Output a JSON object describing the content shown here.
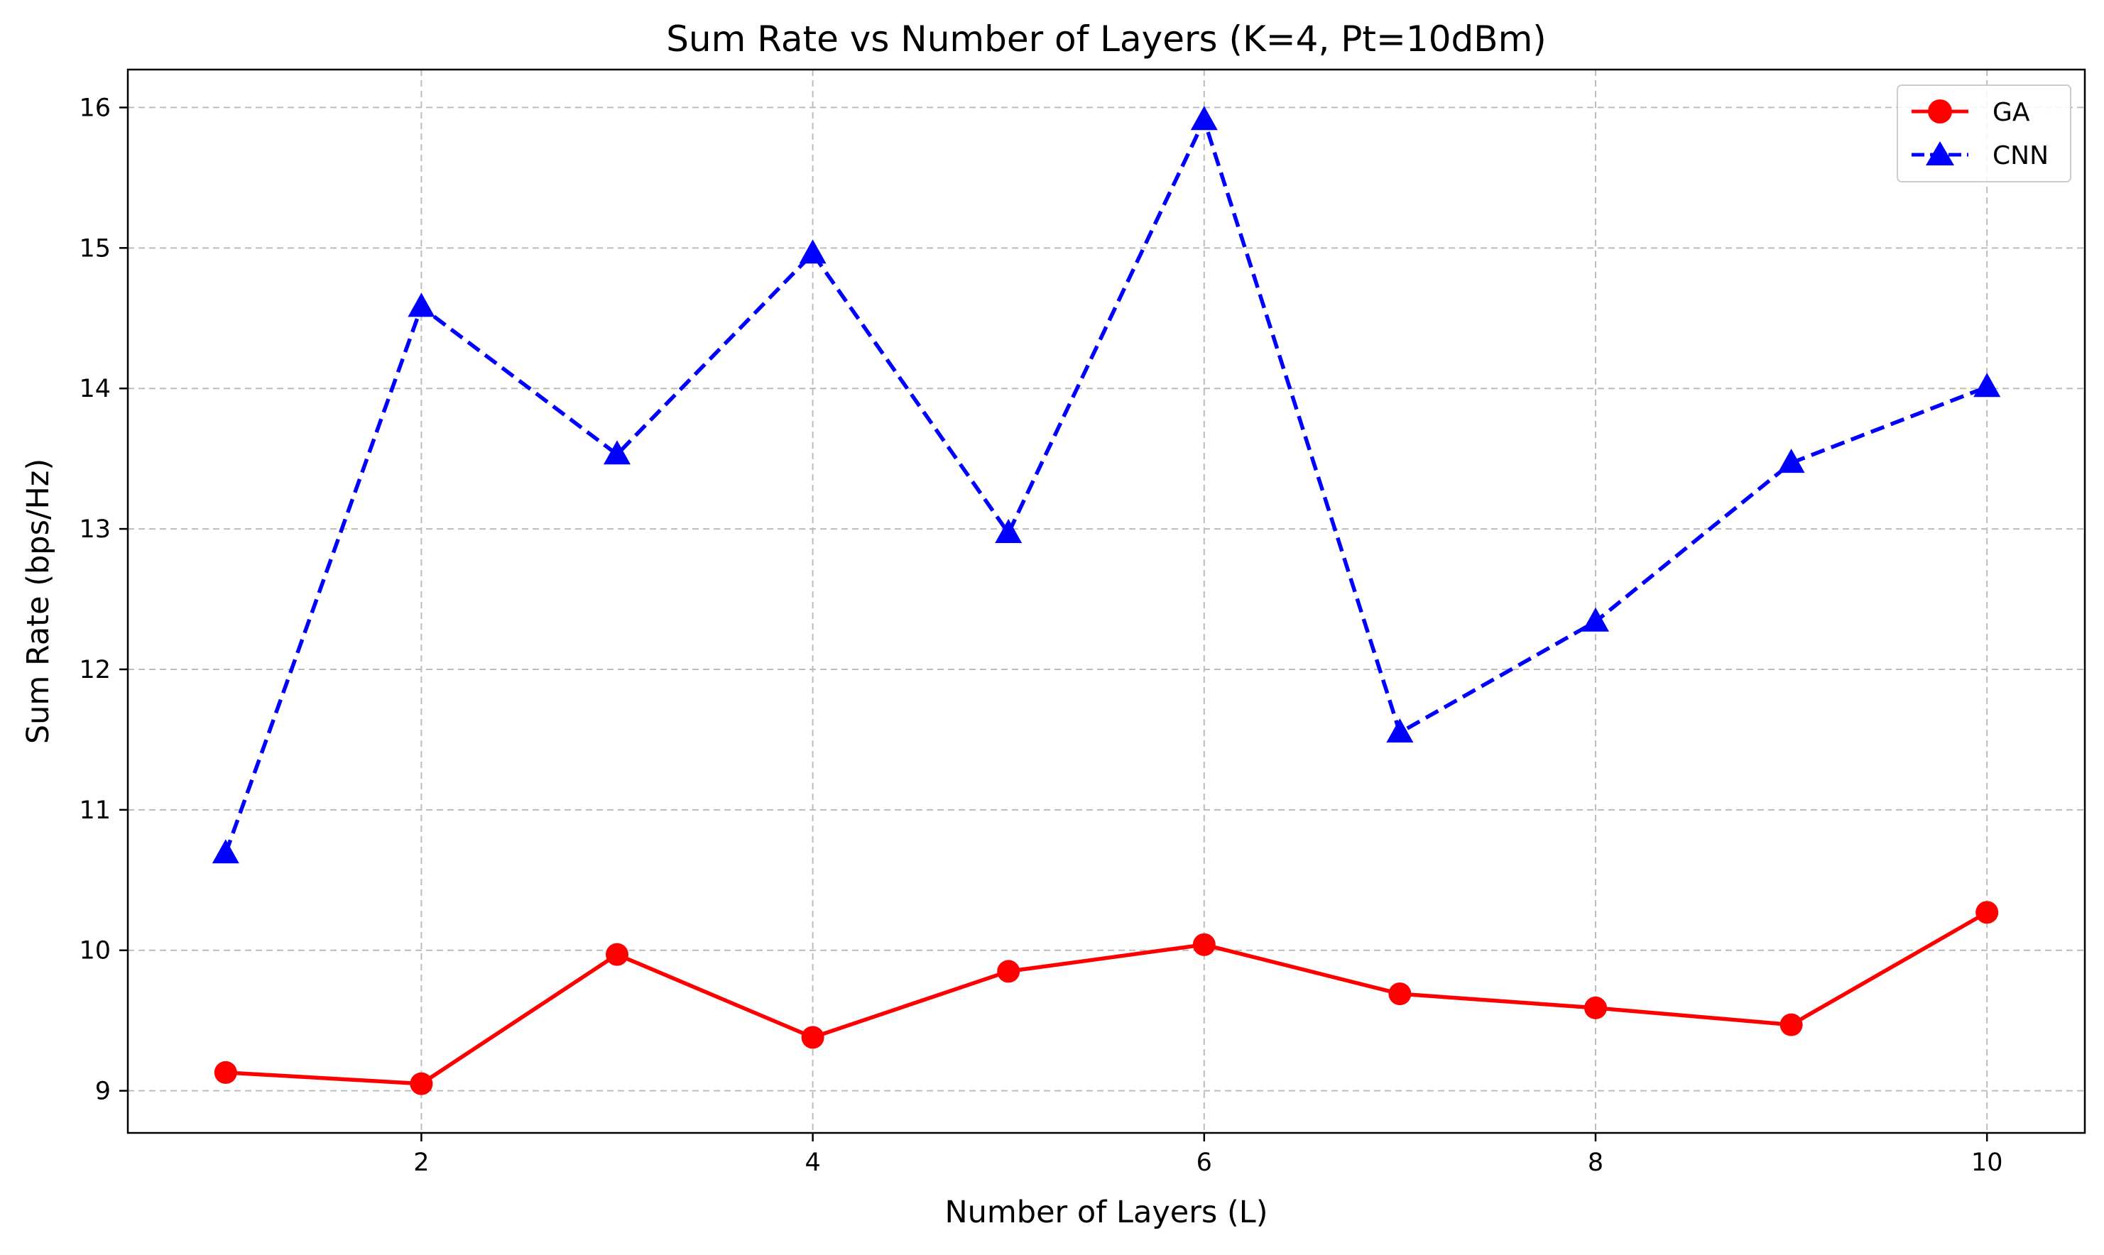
{
  "chart_data": {
    "type": "line",
    "title": "Sum Rate vs Number of Layers (K=4, Pt=10dBm)",
    "xlabel": "Number of Layers (L)",
    "ylabel": "Sum Rate (bps/Hz)",
    "xlim": [
      0.5,
      10.5
    ],
    "ylim": [
      8.7,
      16.27
    ],
    "xticks": [
      2,
      4,
      6,
      8,
      10
    ],
    "yticks": [
      9,
      10,
      11,
      12,
      13,
      14,
      15,
      16
    ],
    "grid": true,
    "grid_style": "dashed",
    "legend_position": "top-right",
    "x": [
      1,
      2,
      3,
      4,
      5,
      6,
      7,
      8,
      9,
      10
    ],
    "series": [
      {
        "name": "GA",
        "color": "#ff0000",
        "line_style": "solid",
        "marker": "circle",
        "values": [
          9.13,
          9.05,
          9.97,
          9.38,
          9.85,
          10.04,
          9.69,
          9.59,
          9.47,
          10.27
        ]
      },
      {
        "name": "CNN",
        "color": "#0000ff",
        "line_style": "dashed",
        "marker": "triangle",
        "values": [
          10.69,
          14.58,
          13.53,
          14.96,
          12.97,
          15.91,
          11.55,
          12.34,
          13.47,
          14.01
        ]
      }
    ]
  }
}
